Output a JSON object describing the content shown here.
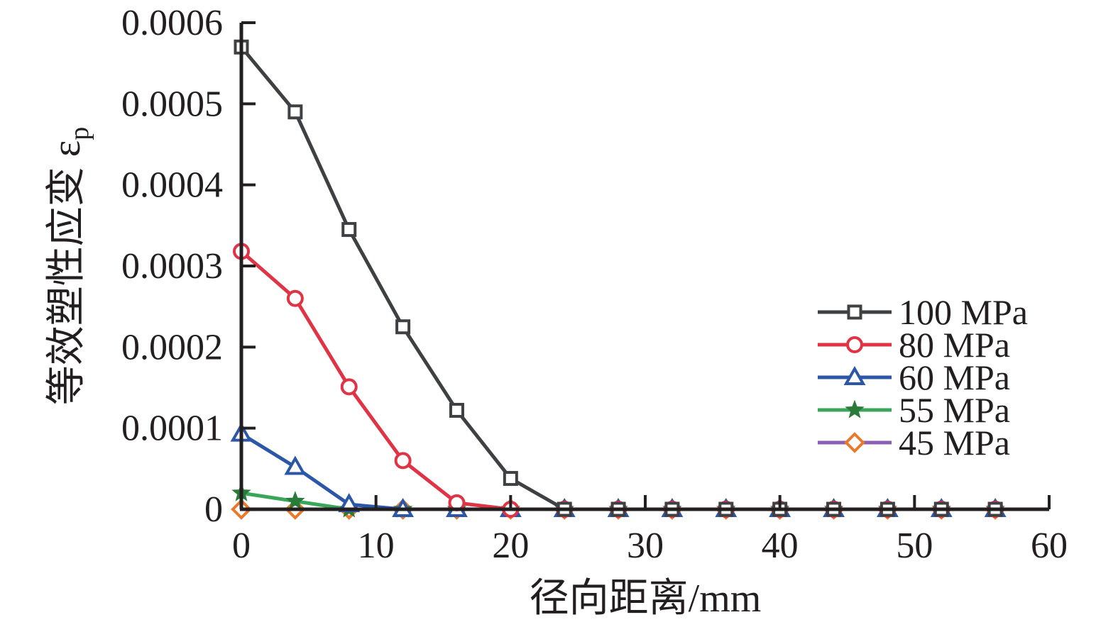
{
  "chart_data": {
    "type": "line",
    "title": "",
    "xlabel": "径向距离/mm",
    "ylabel": "等效塑性应变 ε",
    "ylabel_subscript": "p",
    "xlim": [
      0,
      60
    ],
    "ylim": [
      0,
      0.0006
    ],
    "xticks": [
      "0",
      "10",
      "20",
      "30",
      "40",
      "50",
      "60"
    ],
    "yticks": [
      "0",
      "0.0001",
      "0.0002",
      "0.0003",
      "0.0004",
      "0.0005",
      "0.0006"
    ],
    "grid": false,
    "legend_position": "right",
    "x": [
      0,
      4,
      8,
      12,
      16,
      20,
      24,
      28,
      32,
      36,
      40,
      44,
      48,
      52,
      56
    ],
    "series": [
      {
        "name": "100 MPa",
        "color": "#3f4044",
        "marker": "square",
        "values": [
          0.00057,
          0.00049,
          0.000345,
          0.000225,
          0.000122,
          3.8e-05,
          0,
          0,
          0,
          0,
          0,
          0,
          0,
          0,
          0
        ]
      },
      {
        "name": "80 MPa",
        "color": "#e03345",
        "marker": "circle",
        "values": [
          0.000318,
          0.00026,
          0.000151,
          6e-05,
          8e-06,
          0,
          0,
          0,
          0,
          0,
          0,
          0,
          0,
          0,
          0
        ]
      },
      {
        "name": "60 MPa",
        "color": "#2c56a8",
        "marker": "triangle",
        "values": [
          9.3e-05,
          5.2e-05,
          6e-06,
          0,
          0,
          0,
          0,
          0,
          0,
          0,
          0,
          0,
          0,
          0,
          0
        ]
      },
      {
        "name": "55 MPa",
        "color": "#3aa65a",
        "marker_color": "#2a7a3a",
        "marker": "star",
        "values": [
          2e-05,
          1e-05,
          0,
          0,
          0,
          0,
          0,
          0,
          0,
          0,
          0,
          0,
          0,
          0,
          0
        ]
      },
      {
        "name": "45 MPa",
        "color": "#8b5fb5",
        "marker_color": "#e97a2c",
        "marker": "diamond",
        "values": [
          0,
          0,
          0,
          0,
          0,
          0,
          0,
          0,
          0,
          0,
          0,
          0,
          0,
          0,
          0
        ]
      }
    ]
  }
}
